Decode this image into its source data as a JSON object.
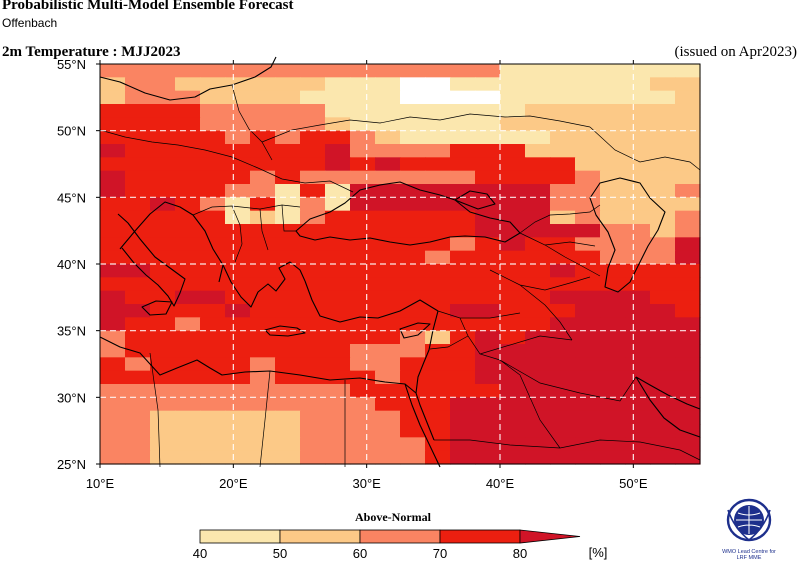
{
  "header": {
    "title": "Probabilistic Multi-Model Ensemble Forecast",
    "subtitle": "Offenbach",
    "variable": "2m Temperature : MJJ2023",
    "issued": "(issued on Apr2023)"
  },
  "map": {
    "lon_range": [
      10,
      55
    ],
    "lat_range": [
      25,
      55
    ],
    "grid_step_deg": 2.5,
    "lon_ticks": [
      "10°E",
      "20°E",
      "30°E",
      "40°E",
      "50°E"
    ],
    "lat_ticks": [
      "25°N",
      "30°N",
      "35°N",
      "40°N",
      "45°N",
      "50°N",
      "55°N"
    ],
    "category_colors": [
      "#ffffff",
      "#fbe7ae",
      "#fcc987",
      "#fa8462",
      "#ec1f10",
      "#d01427"
    ],
    "probability_grid_rows_north_to_south": [
      "333333333333333311111111",
      "233222222111001111111122",
      "233322221111000011111112",
      "444433333111111112222222",
      "444433333211111122222222",
      "444443434432111111222222",
      "544444444533334442222222",
      "444444444545444444422222",
      "544444343333333444432222",
      "544443314155555555332223",
      "445431413155555555332222",
      "444441213444444555232223",
      "444444444444444555553323",
      "444444444444443454433335",
      "444444444444434444443335",
      "554444444444444444544444",
      "444444444444444444444444",
      "544554444444444444555544",
      "554445444444445544455554",
      "544344444444444444555555",
      "344444444444324545555555",
      "344444444433344555555555",
      "434444344433444555555555",
      "444444344443444555555555",
      "333333333344444455555555",
      "333333333334445555555555",
      "332222223333445555555555",
      "332222223333445555555555",
      "332222223333345555555555",
      "332222223333345555555555"
    ]
  },
  "colorbar": {
    "title": "Above-Normal",
    "ticks": [
      "40",
      "50",
      "60",
      "70",
      "80"
    ],
    "unit": "[%]"
  },
  "logo": {
    "text_line1": "WMO Lead Centre for",
    "text_line2": "LRF MME"
  }
}
